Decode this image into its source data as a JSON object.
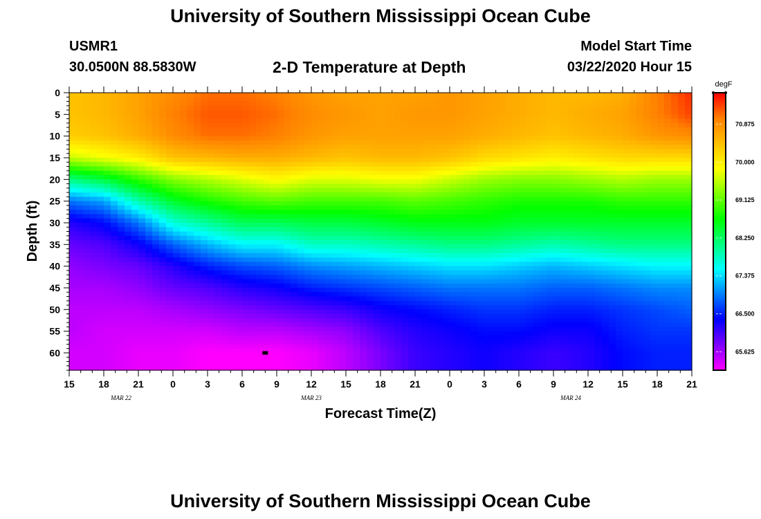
{
  "header": {
    "title": "University of Southern Mississippi Ocean Cube",
    "station": "USMR1",
    "coords": "30.0500N 88.5830W",
    "subtitle": "2-D Temperature at Depth",
    "model_start_label": "Model Start Time",
    "model_start_value": "03/22/2020 Hour 15"
  },
  "footer": {
    "title": "University of Southern Mississippi Ocean Cube"
  },
  "chart_data": {
    "type": "heatmap",
    "title": "2-D Temperature at Depth",
    "xlabel": "Forecast Time(Z)",
    "ylabel": "Depth (ft)",
    "x_forecast_hours": [
      0,
      3,
      6,
      9,
      12,
      15,
      18,
      21,
      24,
      27,
      30,
      33,
      36,
      39,
      42,
      45,
      48,
      51,
      54
    ],
    "xlim": [
      0,
      54
    ],
    "x_tick_labels": [
      "15",
      "18",
      "21",
      "0",
      "3",
      "6",
      "9",
      "12",
      "15",
      "18",
      "21",
      "0",
      "3",
      "6",
      "9",
      "12",
      "15",
      "18",
      "21"
    ],
    "date_labels": [
      {
        "text": "MAR  22",
        "at_hour": 4.5
      },
      {
        "text": "MAR  23",
        "at_hour": 21
      },
      {
        "text": "MAR  24",
        "at_hour": 43.5
      }
    ],
    "y_ticks": [
      0,
      5,
      10,
      15,
      20,
      25,
      30,
      35,
      40,
      45,
      50,
      55,
      60
    ],
    "ylim": [
      0,
      64
    ],
    "colorbar": {
      "unit": "degF",
      "ticks": [
        "70.875",
        "70.000",
        "69.125",
        "68.250",
        "67.375",
        "66.500",
        "65.625"
      ],
      "min": 65.2,
      "max": 71.6,
      "colors": [
        "#ff00ff",
        "#7f00ff",
        "#0000ff",
        "#007fff",
        "#00ffff",
        "#00ff7f",
        "#00ff00",
        "#7fff00",
        "#ffff00",
        "#ffbf00",
        "#ff7f00",
        "#ff0000"
      ]
    },
    "temperature_profile": {
      "depth_ft": [
        0,
        5,
        10,
        15,
        20,
        25,
        30,
        35,
        40,
        45,
        50,
        55,
        60,
        64
      ],
      "series": [
        {
          "hour": 0,
          "values": [
            70.4,
            70.4,
            70.3,
            69.6,
            68.1,
            66.9,
            66.2,
            65.9,
            65.7,
            65.6,
            65.5,
            65.5,
            65.4,
            65.4
          ]
        },
        {
          "hour": 3,
          "values": [
            70.5,
            70.5,
            70.4,
            69.8,
            68.4,
            67.1,
            66.4,
            66.0,
            65.8,
            65.6,
            65.5,
            65.4,
            65.4,
            65.4
          ]
        },
        {
          "hour": 6,
          "values": [
            70.7,
            70.7,
            70.6,
            70.0,
            68.9,
            67.9,
            66.9,
            66.3,
            65.9,
            65.7,
            65.5,
            65.4,
            65.3,
            65.3
          ]
        },
        {
          "hour": 9,
          "values": [
            70.9,
            71.0,
            70.9,
            70.4,
            69.3,
            68.5,
            67.7,
            66.8,
            66.2,
            65.9,
            65.6,
            65.4,
            65.3,
            65.3
          ]
        },
        {
          "hour": 12,
          "values": [
            71.1,
            71.2,
            71.1,
            70.5,
            69.5,
            68.8,
            68.0,
            67.2,
            66.5,
            66.0,
            65.7,
            65.4,
            65.2,
            65.2
          ]
        },
        {
          "hour": 15,
          "values": [
            71.1,
            71.2,
            71.1,
            70.6,
            69.7,
            69.0,
            68.3,
            67.5,
            66.7,
            66.2,
            65.8,
            65.5,
            65.2,
            65.2
          ]
        },
        {
          "hour": 18,
          "values": [
            71.0,
            71.1,
            71.0,
            70.6,
            69.9,
            69.1,
            68.3,
            67.5,
            66.8,
            66.3,
            65.9,
            65.5,
            65.2,
            65.2
          ]
        },
        {
          "hour": 21,
          "values": [
            70.8,
            70.9,
            70.8,
            70.5,
            69.7,
            69.0,
            68.4,
            67.8,
            67.0,
            66.5,
            66.0,
            65.6,
            65.3,
            65.3
          ]
        },
        {
          "hour": 24,
          "values": [
            70.7,
            70.8,
            70.7,
            70.4,
            69.7,
            69.0,
            68.4,
            67.8,
            67.1,
            66.6,
            66.1,
            65.7,
            65.5,
            65.5
          ]
        },
        {
          "hour": 27,
          "values": [
            70.7,
            70.7,
            70.7,
            70.5,
            69.8,
            69.0,
            68.5,
            67.9,
            67.2,
            66.7,
            66.3,
            66.0,
            65.8,
            65.8
          ]
        },
        {
          "hour": 30,
          "values": [
            70.7,
            70.8,
            70.7,
            70.5,
            69.8,
            69.1,
            68.6,
            68.0,
            67.3,
            66.8,
            66.4,
            66.2,
            66.1,
            66.1
          ]
        },
        {
          "hour": 33,
          "values": [
            70.8,
            70.8,
            70.7,
            70.4,
            69.6,
            69.0,
            68.6,
            68.1,
            67.4,
            66.9,
            66.5,
            66.3,
            66.2,
            66.2
          ]
        },
        {
          "hour": 36,
          "values": [
            70.7,
            70.7,
            70.6,
            70.2,
            69.4,
            68.9,
            68.6,
            68.1,
            67.4,
            66.9,
            66.6,
            66.4,
            66.3,
            66.3
          ]
        },
        {
          "hour": 39,
          "values": [
            70.6,
            70.6,
            70.5,
            70.1,
            69.3,
            68.8,
            68.5,
            68.0,
            67.3,
            66.9,
            66.6,
            66.4,
            66.2,
            66.2
          ]
        },
        {
          "hour": 42,
          "values": [
            70.5,
            70.5,
            70.4,
            70.0,
            69.3,
            68.8,
            68.5,
            67.9,
            67.2,
            66.8,
            66.5,
            66.3,
            66.1,
            66.1
          ]
        },
        {
          "hour": 45,
          "values": [
            70.5,
            70.6,
            70.5,
            70.1,
            69.4,
            68.8,
            68.5,
            68.0,
            67.3,
            66.8,
            66.5,
            66.3,
            66.2,
            66.2
          ]
        },
        {
          "hour": 48,
          "values": [
            70.6,
            70.7,
            70.6,
            70.2,
            69.5,
            68.9,
            68.5,
            68.1,
            67.4,
            66.9,
            66.6,
            66.5,
            66.4,
            66.4
          ]
        },
        {
          "hour": 51,
          "values": [
            71.0,
            71.0,
            70.8,
            70.2,
            69.4,
            68.9,
            68.5,
            68.1,
            67.5,
            67.0,
            66.7,
            66.6,
            66.5,
            66.5
          ]
        },
        {
          "hour": 54,
          "values": [
            71.4,
            71.3,
            70.9,
            70.2,
            69.4,
            68.9,
            68.5,
            68.1,
            67.5,
            67.0,
            66.8,
            66.6,
            66.5,
            66.5
          ]
        }
      ]
    },
    "marker": {
      "hour": 17,
      "depth_ft": 60
    }
  }
}
